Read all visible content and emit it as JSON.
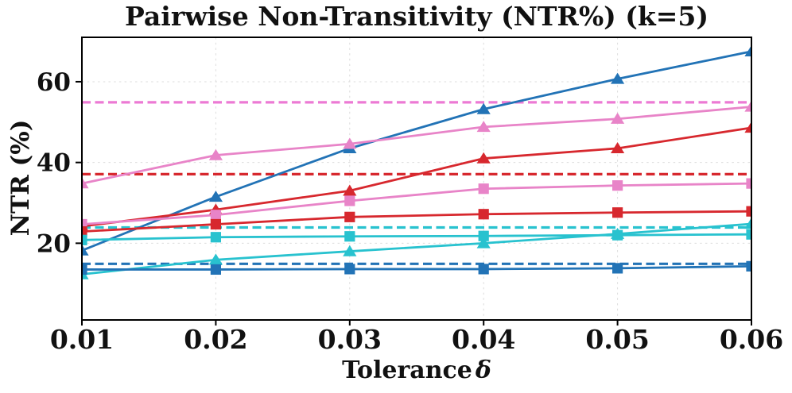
{
  "colors": {
    "background": "#ffffff",
    "axis": "#000000",
    "grid": "#dcdcdc",
    "text": "#111111",
    "blue": "#2273b6",
    "red": "#d7282e",
    "pink": "#e884c8",
    "pink_dashed": "#ec7ad4",
    "cyan": "#28c2cf"
  },
  "chart_data": {
    "type": "line",
    "title": "Pairwise Non-Transitivity (NTR%) (k=5)",
    "xlabel": "Tolerance δ",
    "xlabel_text": "Tolerance",
    "xlabel_symbol": "δ",
    "ylabel": "NTR (%)",
    "x": [
      0.01,
      0.02,
      0.03,
      0.04,
      0.05,
      0.06
    ],
    "xtick_labels": [
      "0.01",
      "0.02",
      "0.03",
      "0.04",
      "0.05",
      "0.06"
    ],
    "yticks": [
      20,
      40,
      60
    ],
    "ytick_labels": [
      "20",
      "40",
      "60"
    ],
    "xlim": [
      0.01,
      0.06
    ],
    "ylim": [
      1,
      71
    ],
    "grid": true,
    "legend_position": "none",
    "hlines": [
      {
        "name": "pink-baseline-dashed",
        "value": 54.9,
        "color": "#ec7ad4"
      },
      {
        "name": "red-baseline-dashed",
        "value": 37.1,
        "color": "#d7282e"
      },
      {
        "name": "cyan-baseline-dashed",
        "value": 23.9,
        "color": "#28c2cf"
      },
      {
        "name": "blue-baseline-dashed",
        "value": 14.9,
        "color": "#2273b6"
      }
    ],
    "series": [
      {
        "name": "blue-triangle",
        "color": "#2273b6",
        "marker": "triangle",
        "style": "solid",
        "values": [
          18.2,
          31.5,
          43.5,
          53.2,
          60.7,
          67.5
        ]
      },
      {
        "name": "pink-triangle",
        "color": "#e884c8",
        "marker": "triangle",
        "style": "solid",
        "values": [
          34.8,
          41.8,
          44.6,
          48.8,
          50.8,
          53.8
        ]
      },
      {
        "name": "red-triangle",
        "color": "#d7282e",
        "marker": "triangle",
        "style": "solid",
        "values": [
          24.2,
          28.3,
          33.0,
          41.0,
          43.5,
          48.6
        ]
      },
      {
        "name": "pink-square",
        "color": "#e884c8",
        "marker": "square",
        "style": "solid",
        "values": [
          24.7,
          27.0,
          30.5,
          33.5,
          34.3,
          34.8
        ]
      },
      {
        "name": "red-square",
        "color": "#d7282e",
        "marker": "square",
        "style": "solid",
        "values": [
          22.9,
          24.7,
          26.5,
          27.2,
          27.6,
          27.9
        ]
      },
      {
        "name": "cyan-square",
        "color": "#28c2cf",
        "marker": "square",
        "style": "solid",
        "values": [
          20.8,
          21.5,
          21.7,
          21.8,
          22.0,
          22.2
        ]
      },
      {
        "name": "cyan-triangle",
        "color": "#28c2cf",
        "marker": "triangle",
        "style": "solid",
        "values": [
          12.3,
          15.9,
          18.0,
          20.0,
          22.3,
          24.8
        ]
      },
      {
        "name": "blue-square",
        "color": "#2273b6",
        "marker": "square",
        "style": "solid",
        "values": [
          13.5,
          13.5,
          13.6,
          13.6,
          13.8,
          14.3
        ]
      }
    ]
  }
}
